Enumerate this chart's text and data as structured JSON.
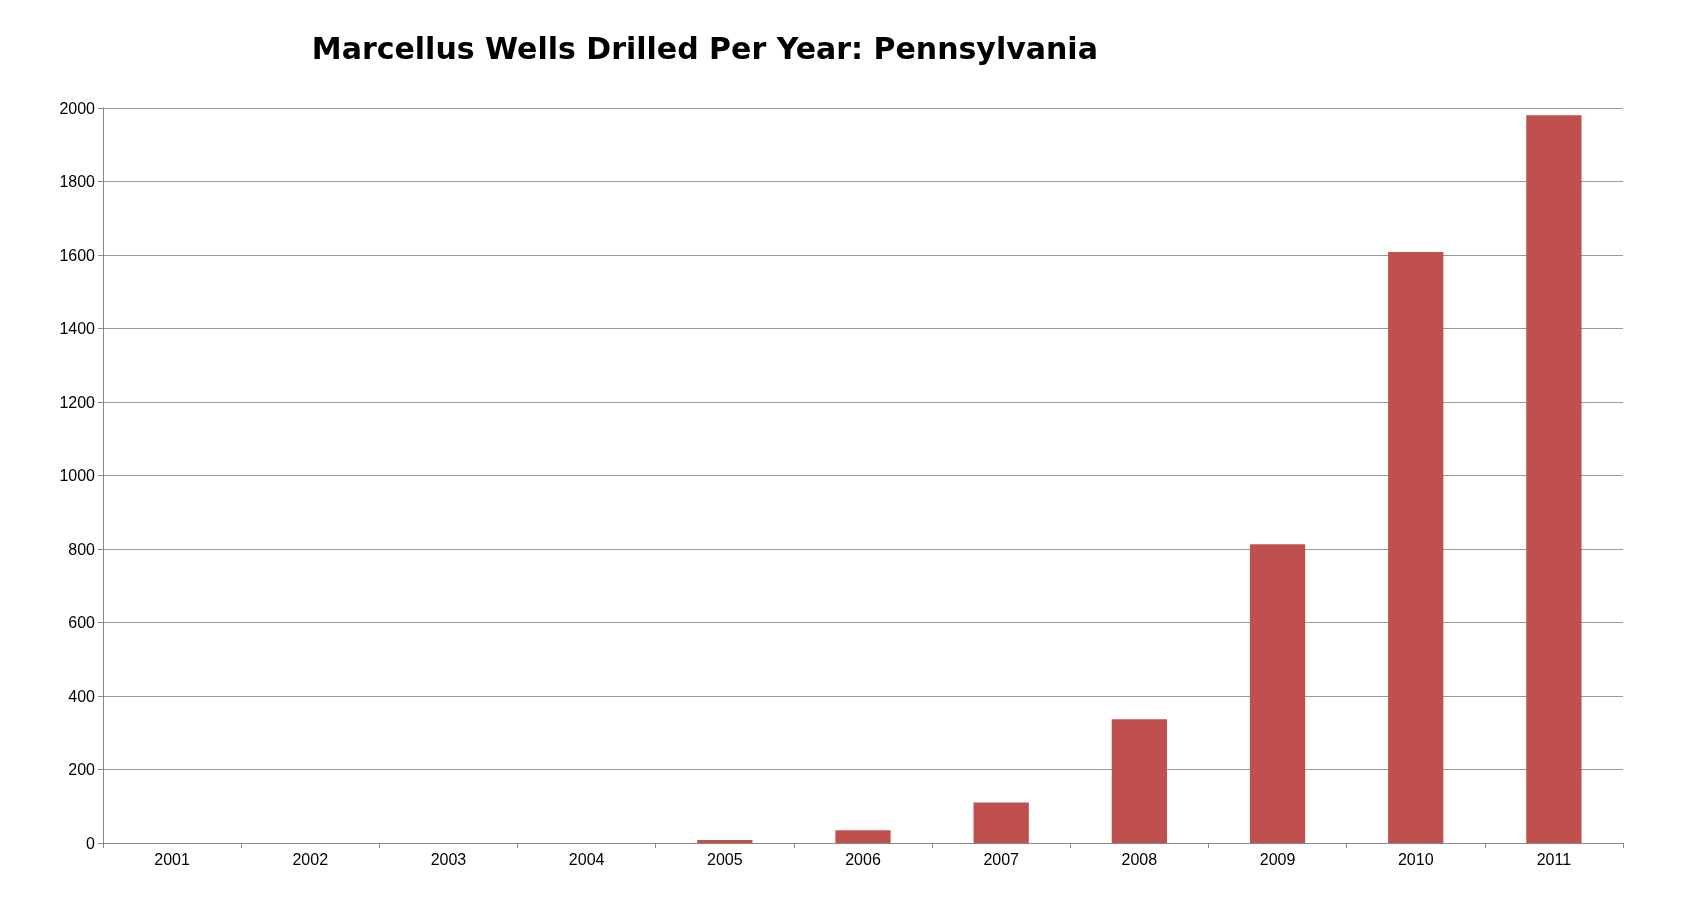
{
  "chart_data": {
    "type": "bar",
    "title": "Marcellus Wells Drilled Per Year: Pennsylvania",
    "categories": [
      "2001",
      "2002",
      "2003",
      "2004",
      "2005",
      "2006",
      "2007",
      "2008",
      "2009",
      "2010",
      "2011"
    ],
    "values": [
      0,
      0,
      0,
      0,
      8,
      35,
      110,
      337,
      813,
      1608,
      1980
    ],
    "color": "#c0504d",
    "ylim": [
      0,
      2000
    ],
    "yticks": [
      0,
      200,
      400,
      600,
      800,
      1000,
      1200,
      1400,
      1600,
      1800,
      2000
    ],
    "grid": "y"
  }
}
